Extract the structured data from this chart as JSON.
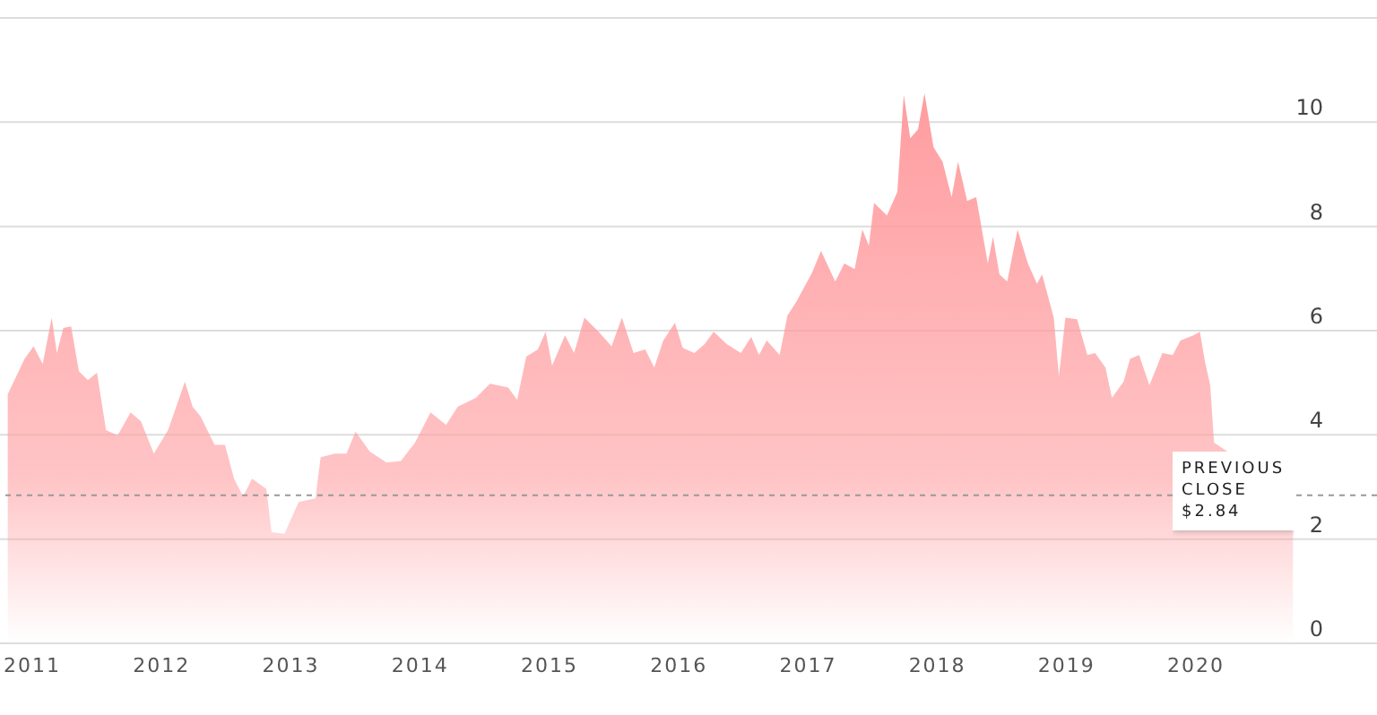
{
  "chart_data": {
    "type": "area",
    "x": [
      2010.81,
      2010.94,
      2011.01,
      2011.08,
      2011.15,
      2011.19,
      2011.24,
      2011.3,
      2011.36,
      2011.43,
      2011.5,
      2011.57,
      2011.66,
      2011.76,
      2011.84,
      2011.94,
      2012.05,
      2012.18,
      2012.24,
      2012.3,
      2012.41,
      2012.49,
      2012.56,
      2012.63,
      2012.7,
      2012.81,
      2012.85,
      2012.95,
      2013.06,
      2013.19,
      2013.23,
      2013.34,
      2013.43,
      2013.5,
      2013.61,
      2013.74,
      2013.85,
      2013.96,
      2014.08,
      2014.2,
      2014.29,
      2014.43,
      2014.54,
      2014.68,
      2014.75,
      2014.82,
      2014.91,
      2014.97,
      2015.02,
      2015.12,
      2015.19,
      2015.27,
      2015.38,
      2015.48,
      2015.56,
      2015.65,
      2015.74,
      2015.81,
      2015.88,
      2015.97,
      2016.03,
      2016.12,
      2016.2,
      2016.27,
      2016.37,
      2016.48,
      2016.56,
      2016.62,
      2016.68,
      2016.78,
      2016.84,
      2016.91,
      2017.03,
      2017.1,
      2017.21,
      2017.28,
      2017.36,
      2017.42,
      2017.47,
      2017.51,
      2017.61,
      2017.69,
      2017.74,
      2017.79,
      2017.85,
      2017.9,
      2017.97,
      2018.04,
      2018.11,
      2018.16,
      2018.23,
      2018.3,
      2018.39,
      2018.43,
      2018.48,
      2018.54,
      2018.62,
      2018.7,
      2018.77,
      2018.81,
      2018.9,
      2018.94,
      2018.99,
      2019.08,
      2019.16,
      2019.22,
      2019.3,
      2019.35,
      2019.44,
      2019.49,
      2019.56,
      2019.64,
      2019.74,
      2019.82,
      2019.88,
      2019.98,
      2020.03,
      2020.07,
      2020.11,
      2020.14,
      2020.17,
      2020.75
    ],
    "series": [
      {
        "color": "#ff9da0",
        "values": [
          4.78,
          5.46,
          5.7,
          5.36,
          6.25,
          5.57,
          6.05,
          6.08,
          5.22,
          5.05,
          5.19,
          4.09,
          3.99,
          4.43,
          4.26,
          3.64,
          4.09,
          5.02,
          4.54,
          4.36,
          3.81,
          3.81,
          3.16,
          2.82,
          3.16,
          2.96,
          2.13,
          2.1,
          2.71,
          2.78,
          3.57,
          3.64,
          3.64,
          4.06,
          3.68,
          3.47,
          3.5,
          3.85,
          4.43,
          4.19,
          4.54,
          4.71,
          4.98,
          4.91,
          4.67,
          5.5,
          5.64,
          5.98,
          5.33,
          5.91,
          5.57,
          6.25,
          5.98,
          5.7,
          6.25,
          5.57,
          5.64,
          5.29,
          5.81,
          6.15,
          5.67,
          5.57,
          5.74,
          5.98,
          5.74,
          5.57,
          5.88,
          5.53,
          5.81,
          5.53,
          6.29,
          6.56,
          7.11,
          7.53,
          6.94,
          7.29,
          7.18,
          7.94,
          7.63,
          8.45,
          8.21,
          8.66,
          10.52,
          9.69,
          9.86,
          10.55,
          9.52,
          9.24,
          8.56,
          9.24,
          8.49,
          8.56,
          7.29,
          7.8,
          7.08,
          6.94,
          7.94,
          7.29,
          6.9,
          7.08,
          6.25,
          5.12,
          6.25,
          6.22,
          5.53,
          5.57,
          5.29,
          4.71,
          5.02,
          5.46,
          5.53,
          4.95,
          5.57,
          5.53,
          5.81,
          5.91,
          5.98,
          5.4,
          4.95,
          3.85,
          null,
          2.84
        ]
      }
    ],
    "xlim": [
      2010.75,
      2021.4
    ],
    "xticks": [
      2011,
      2012,
      2013,
      2014,
      2015,
      2016,
      2017,
      2018,
      2019,
      2020
    ],
    "ylim": [
      0,
      12
    ],
    "yticks": [
      0,
      2,
      4,
      6,
      8,
      10,
      {
        "value": 12,
        "label": null
      }
    ],
    "grid": "y",
    "ref_lines": [
      {
        "axis": "y",
        "value": 2.84,
        "label": "PREVIOUS CLOSE $2.84",
        "color": "#999999",
        "line_style": "dashed"
      }
    ]
  }
}
